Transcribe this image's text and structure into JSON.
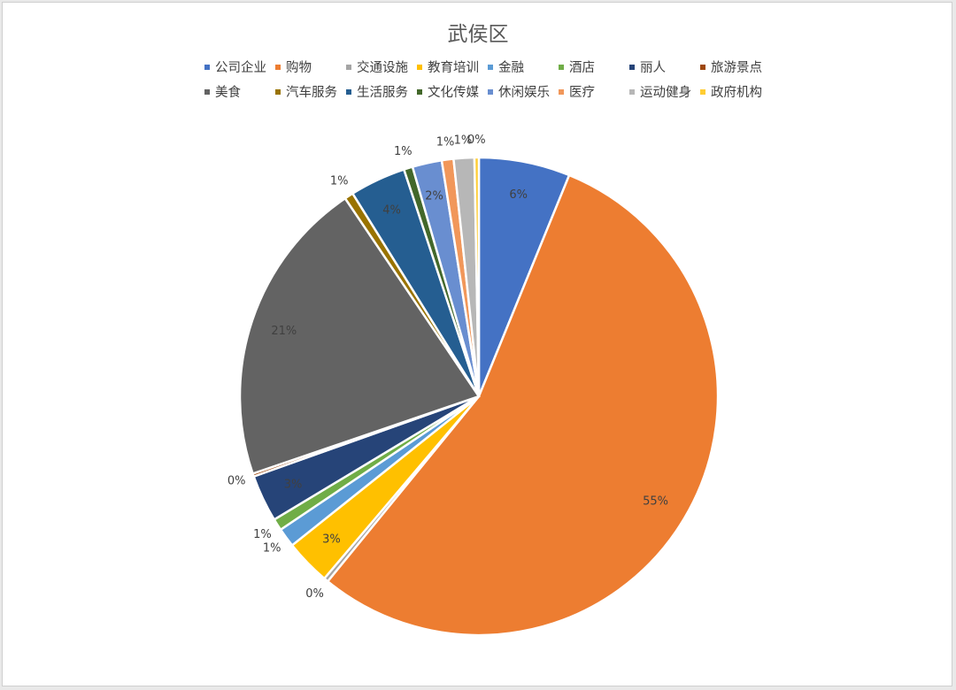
{
  "chart_data": {
    "type": "pie",
    "title": "武侯区",
    "legend_position": "top",
    "categories": [
      "公司企业",
      "购物",
      "交通设施",
      "教育培训",
      "金融",
      "酒店",
      "丽人",
      "旅游景点",
      "美食",
      "汽车服务",
      "生活服务",
      "文化传媒",
      "休闲娱乐",
      "医疗",
      "运动健身",
      "政府机构"
    ],
    "values": [
      6.2,
      55.0,
      0.3,
      3.1,
      1.3,
      0.8,
      3.2,
      0.2,
      20.9,
      0.6,
      3.8,
      0.6,
      2.0,
      0.8,
      1.4,
      0.3
    ],
    "data_labels": [
      "6%",
      "55%",
      "0%",
      "3%",
      "1%",
      "1%",
      "3%",
      "0%",
      "21%",
      "1%",
      "4%",
      "1%",
      "2%",
      "1%",
      "1%",
      "0%"
    ],
    "colors": [
      "#4472C4",
      "#ED7D31",
      "#A5A5A5",
      "#FFC000",
      "#5B9BD5",
      "#70AD47",
      "#264478",
      "#9E480E",
      "#636363",
      "#997300",
      "#255E91",
      "#43682B",
      "#698ED0",
      "#F1975A",
      "#B7B7B7",
      "#FFCD33"
    ]
  }
}
